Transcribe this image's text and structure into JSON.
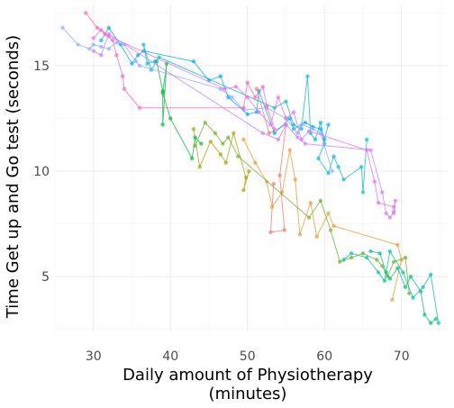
{
  "chart_data": {
    "type": "line",
    "title": "",
    "xlabel_lines": [
      "Daily amount of Physiotherapy",
      "(minutes)"
    ],
    "ylabel": "Time Get up and Go test (seconds)",
    "xlim": [
      25,
      76
    ],
    "ylim": [
      2.4,
      17.9
    ],
    "x_ticks": [
      30,
      40,
      50,
      60,
      70
    ],
    "y_ticks": [
      5,
      10,
      15
    ],
    "x_tick_labels": [
      "30",
      "40",
      "50",
      "60",
      "70"
    ],
    "y_tick_labels": [
      "5",
      "10",
      "15"
    ],
    "grid": true,
    "legend": "none",
    "series": [
      {
        "color": "#F8766D",
        "points": [
          [
            51.2,
            13.9
          ],
          [
            52.8,
            11.8
          ],
          [
            55.0,
            12.2
          ],
          [
            54.2,
            9.8
          ],
          [
            54.8,
            7.2
          ],
          [
            53.0,
            7.1
          ],
          [
            53.4,
            9.4
          ]
        ]
      },
      {
        "color": "#E89B2F",
        "points": [
          [
            49.5,
            11.5
          ],
          [
            51.0,
            10.4
          ],
          [
            52.5,
            9.5
          ],
          [
            53.2,
            8.3
          ],
          [
            54.5,
            9.0
          ],
          [
            55.5,
            11.0
          ],
          [
            56.2,
            9.6
          ],
          [
            56.8,
            7.0
          ],
          [
            58.2,
            8.5
          ],
          [
            59.0,
            6.9
          ],
          [
            60.5,
            8.0
          ],
          [
            61.2,
            7.4
          ],
          [
            69.5,
            6.5
          ],
          [
            70.0,
            5.8
          ],
          [
            68.8,
            3.9
          ]
        ]
      },
      {
        "color": "#A3A500",
        "points": [
          [
            43.0,
            12.0
          ],
          [
            43.8,
            10.2
          ],
          [
            45.2,
            11.4
          ],
          [
            46.5,
            10.8
          ],
          [
            47.2,
            10.4
          ],
          [
            48.2,
            11.8
          ],
          [
            49.8,
            9.7
          ],
          [
            49.5,
            9.1
          ],
          [
            50.2,
            10.0
          ]
        ]
      },
      {
        "color": "#6FAF2A",
        "points": [
          [
            43.2,
            11.2
          ],
          [
            44.5,
            12.3
          ],
          [
            45.8,
            11.8
          ],
          [
            46.8,
            11.3
          ],
          [
            47.5,
            11.6
          ],
          [
            48.8,
            10.7
          ],
          [
            58.0,
            7.8
          ],
          [
            59.5,
            8.6
          ],
          [
            60.8,
            7.2
          ],
          [
            62.0,
            5.7
          ],
          [
            63.5,
            5.9
          ],
          [
            65.0,
            6.1
          ],
          [
            66.8,
            5.8
          ],
          [
            67.5,
            5.5
          ],
          [
            68.2,
            5.0
          ],
          [
            69.0,
            5.7
          ],
          [
            70.5,
            5.9
          ],
          [
            71.0,
            4.2
          ]
        ]
      },
      {
        "color": "#00BA38",
        "points": [
          [
            38.2,
            15.2
          ],
          [
            39.0,
            13.8
          ],
          [
            39.0,
            12.2
          ],
          [
            39.5,
            15.1
          ],
          [
            39.0,
            13.7
          ],
          [
            40.0,
            12.5
          ],
          [
            42.8,
            10.6
          ],
          [
            43.2,
            11.6
          ],
          [
            44.0,
            11.3
          ]
        ]
      },
      {
        "color": "#00BF7D",
        "points": [
          [
            66.0,
            6.2
          ],
          [
            67.2,
            6.1
          ],
          [
            68.0,
            5.2
          ],
          [
            68.5,
            4.9
          ],
          [
            69.5,
            5.4
          ],
          [
            70.5,
            4.5
          ],
          [
            71.2,
            5.0
          ],
          [
            72.5,
            4.3
          ],
          [
            73.0,
            3.2
          ],
          [
            73.8,
            2.8
          ],
          [
            74.5,
            3.0
          ]
        ]
      },
      {
        "color": "#00C1A3",
        "points": [
          [
            62.5,
            5.8
          ],
          [
            63.5,
            6.1
          ],
          [
            65.5,
            5.9
          ],
          [
            67.0,
            5.2
          ],
          [
            67.8,
            4.8
          ],
          [
            68.5,
            6.2
          ],
          [
            70.2,
            5.2
          ],
          [
            71.5,
            4.0
          ],
          [
            72.8,
            4.5
          ],
          [
            73.8,
            5.1
          ],
          [
            74.8,
            2.8
          ]
        ]
      },
      {
        "color": "#00BCD8",
        "points": [
          [
            38.0,
            15.2
          ],
          [
            37.0,
            15.1
          ],
          [
            36.5,
            16.0
          ],
          [
            37.5,
            14.8
          ],
          [
            38.5,
            15.4
          ],
          [
            53.5,
            13.0
          ],
          [
            55.0,
            13.3
          ],
          [
            56.0,
            12.2
          ],
          [
            57.0,
            12.0
          ],
          [
            57.8,
            14.5
          ],
          [
            58.2,
            11.8
          ],
          [
            58.8,
            11.5
          ],
          [
            59.5,
            12.3
          ],
          [
            60.0,
            11.3
          ],
          [
            59.2,
            10.6
          ],
          [
            60.5,
            9.9
          ],
          [
            61.2,
            10.7
          ],
          [
            61.8,
            10.2
          ],
          [
            62.5,
            9.6
          ],
          [
            64.8,
            10.2
          ],
          [
            65.0,
            9.0
          ],
          [
            65.5,
            11.5
          ]
        ]
      },
      {
        "color": "#00A9FF",
        "points": [
          [
            31.0,
            16.2
          ],
          [
            32.0,
            16.8
          ],
          [
            33.5,
            16.0
          ],
          [
            35.0,
            15.1
          ],
          [
            35.8,
            15.5
          ],
          [
            36.5,
            15.7
          ],
          [
            43.0,
            15.2
          ],
          [
            45.0,
            14.3
          ],
          [
            46.5,
            14.5
          ],
          [
            47.5,
            13.5
          ],
          [
            50.0,
            12.7
          ],
          [
            51.2,
            12.8
          ],
          [
            51.5,
            13.8
          ],
          [
            53.5,
            11.8
          ],
          [
            55.5,
            12.5
          ],
          [
            56.0,
            12.0
          ],
          [
            57.5,
            12.3
          ],
          [
            58.5,
            12.1
          ],
          [
            59.5,
            12.0
          ],
          [
            60.0,
            11.5
          ],
          [
            60.5,
            12.2
          ]
        ]
      },
      {
        "color": "#8FAAFF",
        "points": [
          [
            26.0,
            16.8
          ],
          [
            28.0,
            16.0
          ],
          [
            29.5,
            15.8
          ],
          [
            30.0,
            16.0
          ],
          [
            31.0,
            15.9
          ],
          [
            32.0,
            15.8
          ],
          [
            33.0,
            16.1
          ],
          [
            34.0,
            16.0
          ],
          [
            35.5,
            15.2
          ],
          [
            36.0,
            15.0
          ],
          [
            46.5,
            13.9
          ],
          [
            48.0,
            13.5
          ],
          [
            49.5,
            12.9
          ],
          [
            52.5,
            13.0
          ],
          [
            55.0,
            12.5
          ],
          [
            56.5,
            11.8
          ],
          [
            57.0,
            12.2
          ],
          [
            58.5,
            12.0
          ],
          [
            59.5,
            11.8
          ],
          [
            61.0,
            10.0
          ]
        ]
      },
      {
        "color": "#C77CFF",
        "points": [
          [
            30.0,
            15.7
          ],
          [
            31.0,
            15.5
          ],
          [
            32.0,
            16.5
          ],
          [
            52.0,
            11.8
          ],
          [
            54.0,
            11.5
          ],
          [
            55.0,
            12.2
          ],
          [
            56.5,
            11.6
          ],
          [
            57.5,
            11.3
          ],
          [
            66.0,
            11.0
          ],
          [
            67.5,
            9.0
          ],
          [
            68.0,
            8.0
          ],
          [
            68.5,
            7.8
          ],
          [
            69.0,
            8.1
          ]
        ]
      },
      {
        "color": "#E76BF3",
        "points": [
          [
            30.0,
            16.3
          ],
          [
            31.0,
            16.7
          ],
          [
            32.0,
            16.4
          ],
          [
            47.0,
            13.9
          ],
          [
            48.5,
            14.0
          ],
          [
            50.0,
            13.5
          ],
          [
            51.5,
            12.8
          ],
          [
            53.0,
            12.2
          ],
          [
            54.0,
            13.5
          ],
          [
            55.0,
            12.5
          ],
          [
            56.0,
            12.8
          ],
          [
            57.0,
            11.5
          ],
          [
            58.0,
            11.9
          ],
          [
            65.5,
            11.0
          ],
          [
            66.5,
            9.5
          ],
          [
            67.0,
            8.5
          ],
          [
            69.0,
            8.3
          ],
          [
            69.2,
            8.6
          ],
          [
            69.0,
            8.0
          ]
        ]
      },
      {
        "color": "#FF62BC",
        "points": [
          [
            29.0,
            17.5
          ],
          [
            30.5,
            16.8
          ],
          [
            31.5,
            16.5
          ],
          [
            32.5,
            16.2
          ],
          [
            33.0,
            15.5
          ],
          [
            33.8,
            14.5
          ],
          [
            34.0,
            13.9
          ],
          [
            36.0,
            13.0
          ],
          [
            49.5,
            13.0
          ],
          [
            50.0,
            14.2
          ],
          [
            51.0,
            13.5
          ],
          [
            52.0,
            14.0
          ],
          [
            52.5,
            13.1
          ],
          [
            53.5,
            12.0
          ]
        ]
      }
    ]
  }
}
